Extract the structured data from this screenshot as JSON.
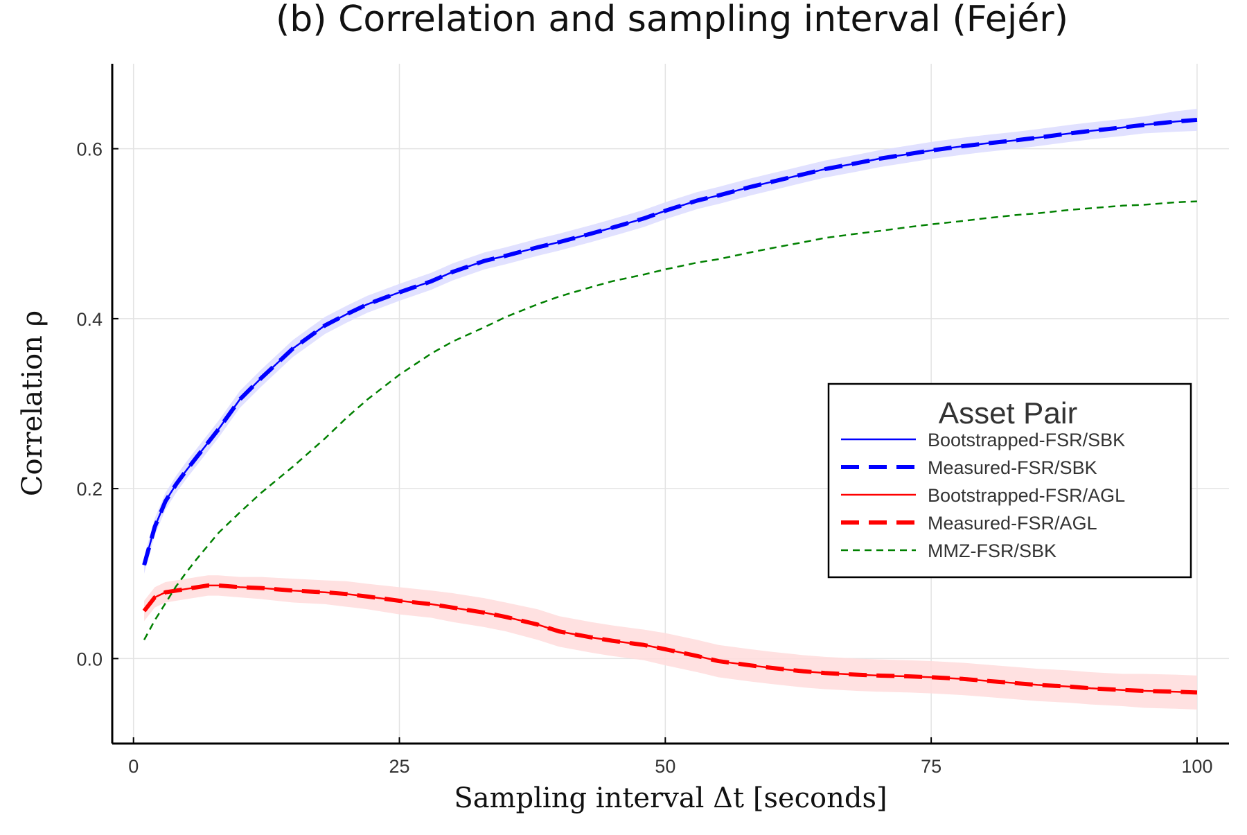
{
  "chart_data": {
    "type": "line",
    "title": "(b) Correlation and sampling interval (Fejér)",
    "xlabel": "Sampling interval Δt [seconds]",
    "ylabel": "Correlation ρ",
    "xlim": [
      -2,
      103
    ],
    "ylim": [
      -0.1,
      0.7
    ],
    "xticks": [
      0,
      25,
      50,
      75,
      100
    ],
    "xtick_labels": [
      "0",
      "25",
      "50",
      "75",
      "100"
    ],
    "yticks": [
      0.0,
      0.2,
      0.4,
      0.6
    ],
    "ytick_labels": [
      "0.0",
      "0.2",
      "0.4",
      "0.6"
    ],
    "grid": true,
    "legend": {
      "title": "Asset Pair",
      "position": "right, vertically centered",
      "entries": [
        "Bootstrapped-FSR/SBK",
        "Measured-FSR/SBK",
        "Bootstrapped-FSR/AGL",
        "Measured-FSR/AGL",
        "MMZ-FSR/SBK"
      ]
    },
    "colors": {
      "blue": "#0000ff",
      "red": "#ff0000",
      "green": "#008000",
      "blue_band": "#dcdcff",
      "red_band": "#ffdcdc"
    },
    "series": [
      {
        "name": "Bootstrapped-FSR/SBK",
        "style": "solid",
        "color": "#0000ff",
        "x": [
          1,
          2,
          3,
          4,
          5,
          6,
          8,
          10,
          12,
          15,
          18,
          20,
          22,
          25,
          28,
          30,
          33,
          35,
          38,
          40,
          43,
          45,
          48,
          50,
          53,
          55,
          58,
          60,
          63,
          65,
          68,
          70,
          73,
          75,
          78,
          80,
          83,
          85,
          88,
          90,
          93,
          95,
          98,
          100
        ],
        "y": [
          0.11,
          0.155,
          0.185,
          0.205,
          0.222,
          0.238,
          0.27,
          0.305,
          0.33,
          0.365,
          0.392,
          0.405,
          0.417,
          0.431,
          0.444,
          0.455,
          0.468,
          0.474,
          0.484,
          0.49,
          0.5,
          0.507,
          0.518,
          0.527,
          0.539,
          0.545,
          0.555,
          0.561,
          0.57,
          0.576,
          0.583,
          0.588,
          0.594,
          0.598,
          0.603,
          0.606,
          0.61,
          0.613,
          0.618,
          0.621,
          0.625,
          0.628,
          0.632,
          0.634
        ],
        "band": [
          0.01,
          0.01,
          0.01,
          0.01,
          0.01,
          0.01,
          0.01,
          0.01,
          0.01,
          0.01,
          0.01,
          0.01,
          0.01,
          0.01,
          0.01,
          0.01,
          0.01,
          0.01,
          0.01,
          0.01,
          0.01,
          0.01,
          0.01,
          0.01,
          0.01,
          0.01,
          0.01,
          0.01,
          0.01,
          0.01,
          0.01,
          0.01,
          0.01,
          0.01,
          0.01,
          0.01,
          0.01,
          0.01,
          0.01,
          0.01,
          0.01,
          0.01,
          0.012,
          0.013
        ]
      },
      {
        "name": "Measured-FSR/SBK",
        "style": "dashed-thick",
        "color": "#0000ff",
        "x": [
          1,
          2,
          3,
          4,
          5,
          6,
          8,
          10,
          12,
          15,
          18,
          20,
          22,
          25,
          28,
          30,
          33,
          35,
          38,
          40,
          43,
          45,
          48,
          50,
          53,
          55,
          58,
          60,
          63,
          65,
          68,
          70,
          73,
          75,
          78,
          80,
          83,
          85,
          88,
          90,
          93,
          95,
          98,
          100
        ],
        "y": [
          0.11,
          0.155,
          0.185,
          0.205,
          0.222,
          0.238,
          0.27,
          0.305,
          0.33,
          0.365,
          0.392,
          0.405,
          0.417,
          0.431,
          0.444,
          0.455,
          0.468,
          0.474,
          0.484,
          0.49,
          0.5,
          0.507,
          0.518,
          0.527,
          0.539,
          0.545,
          0.555,
          0.561,
          0.57,
          0.576,
          0.583,
          0.588,
          0.594,
          0.598,
          0.603,
          0.606,
          0.61,
          0.613,
          0.618,
          0.621,
          0.625,
          0.628,
          0.632,
          0.634
        ]
      },
      {
        "name": "Bootstrapped-FSR/AGL",
        "style": "solid",
        "color": "#ff0000",
        "x": [
          1,
          2,
          3,
          4,
          5,
          6,
          7,
          8,
          10,
          12,
          15,
          18,
          20,
          22,
          25,
          28,
          30,
          33,
          35,
          38,
          40,
          43,
          45,
          48,
          50,
          53,
          55,
          58,
          60,
          63,
          65,
          68,
          70,
          73,
          75,
          78,
          80,
          83,
          85,
          88,
          90,
          93,
          95,
          98,
          100
        ],
        "y": [
          0.056,
          0.072,
          0.078,
          0.08,
          0.082,
          0.084,
          0.086,
          0.086,
          0.084,
          0.083,
          0.08,
          0.078,
          0.076,
          0.073,
          0.068,
          0.064,
          0.06,
          0.054,
          0.049,
          0.04,
          0.032,
          0.025,
          0.021,
          0.016,
          0.011,
          0.003,
          -0.003,
          -0.008,
          -0.011,
          -0.015,
          -0.017,
          -0.019,
          -0.02,
          -0.021,
          -0.022,
          -0.024,
          -0.026,
          -0.029,
          -0.031,
          -0.033,
          -0.035,
          -0.037,
          -0.038,
          -0.039,
          -0.04
        ],
        "band": [
          0.012,
          0.012,
          0.012,
          0.012,
          0.012,
          0.012,
          0.012,
          0.012,
          0.012,
          0.013,
          0.014,
          0.014,
          0.015,
          0.015,
          0.016,
          0.016,
          0.017,
          0.017,
          0.017,
          0.018,
          0.018,
          0.018,
          0.018,
          0.018,
          0.019,
          0.019,
          0.019,
          0.019,
          0.019,
          0.019,
          0.019,
          0.019,
          0.019,
          0.019,
          0.019,
          0.019,
          0.019,
          0.019,
          0.019,
          0.019,
          0.019,
          0.019,
          0.02,
          0.02,
          0.02
        ]
      },
      {
        "name": "Measured-FSR/AGL",
        "style": "dashed-thick",
        "color": "#ff0000",
        "x": [
          1,
          2,
          3,
          4,
          5,
          6,
          7,
          8,
          10,
          12,
          15,
          18,
          20,
          22,
          25,
          28,
          30,
          33,
          35,
          38,
          40,
          43,
          45,
          48,
          50,
          53,
          55,
          58,
          60,
          63,
          65,
          68,
          70,
          73,
          75,
          78,
          80,
          83,
          85,
          88,
          90,
          93,
          95,
          98,
          100
        ],
        "y": [
          0.056,
          0.072,
          0.078,
          0.08,
          0.082,
          0.084,
          0.086,
          0.086,
          0.084,
          0.083,
          0.08,
          0.078,
          0.076,
          0.073,
          0.068,
          0.064,
          0.06,
          0.054,
          0.049,
          0.04,
          0.032,
          0.025,
          0.021,
          0.016,
          0.011,
          0.003,
          -0.003,
          -0.008,
          -0.011,
          -0.015,
          -0.017,
          -0.019,
          -0.02,
          -0.021,
          -0.022,
          -0.024,
          -0.026,
          -0.029,
          -0.031,
          -0.033,
          -0.035,
          -0.037,
          -0.038,
          -0.039,
          -0.04
        ]
      },
      {
        "name": "MMZ-FSR/SBK",
        "style": "dashed-thin",
        "color": "#008000",
        "x": [
          1,
          2,
          3,
          4,
          5,
          6,
          8,
          10,
          12,
          15,
          18,
          20,
          22,
          25,
          28,
          30,
          33,
          35,
          38,
          40,
          43,
          45,
          48,
          50,
          53,
          55,
          58,
          60,
          63,
          65,
          68,
          70,
          73,
          75,
          78,
          80,
          83,
          85,
          88,
          90,
          93,
          95,
          98,
          100
        ],
        "y": [
          0.022,
          0.045,
          0.065,
          0.085,
          0.102,
          0.118,
          0.148,
          0.172,
          0.195,
          0.226,
          0.259,
          0.283,
          0.305,
          0.334,
          0.359,
          0.373,
          0.39,
          0.402,
          0.417,
          0.426,
          0.437,
          0.444,
          0.452,
          0.458,
          0.466,
          0.47,
          0.478,
          0.483,
          0.49,
          0.495,
          0.5,
          0.503,
          0.508,
          0.511,
          0.515,
          0.518,
          0.522,
          0.524,
          0.528,
          0.53,
          0.533,
          0.534,
          0.537,
          0.538
        ]
      }
    ]
  }
}
